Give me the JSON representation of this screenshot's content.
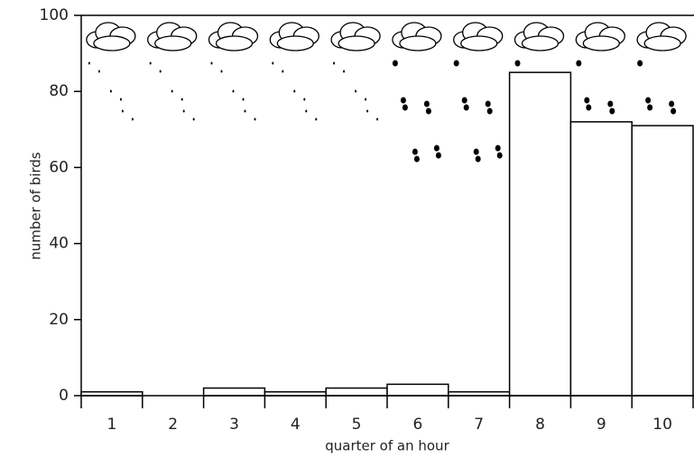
{
  "chart_data": {
    "type": "bar",
    "categories": [
      "1",
      "2",
      "3",
      "4",
      "5",
      "6",
      "7",
      "8",
      "9",
      "10"
    ],
    "values": [
      1,
      0,
      2,
      1,
      2,
      3,
      1,
      85,
      72,
      71
    ],
    "color": "#ffffff",
    "ylim": [
      0,
      100
    ],
    "yticks": [
      0,
      20,
      40,
      60,
      80,
      100
    ],
    "xlabel": "quarter of an hour",
    "ylabel": "number of birds"
  }
}
